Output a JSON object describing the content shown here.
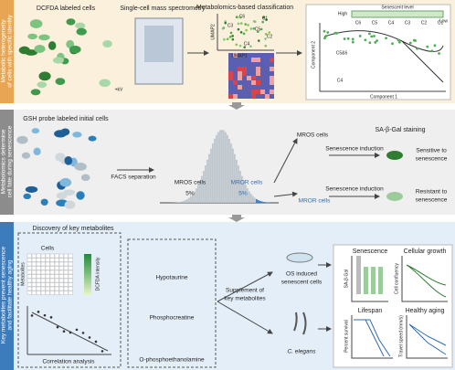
{
  "panel1": {
    "side_label": [
      "Metabolic heterogeneity",
      "of cells with specific identity"
    ],
    "dcfda": "DCFDA labeled cells",
    "kv": "+kV",
    "scms": "Single-cell mass spectrometry",
    "classification": "Metabolomics-based classification",
    "umap2": "UMAP2",
    "umap1": "UMAP1",
    "clusters": [
      "C1",
      "C2",
      "C3",
      "C4",
      "C5",
      "C6"
    ],
    "senescent_level": "Senescent level",
    "high": "High",
    "low": "Low",
    "trajectory_clusters": [
      "C6",
      "C5",
      "C4",
      "C3",
      "C2",
      "C1"
    ],
    "branch_labels": [
      "C5&6",
      "C4"
    ],
    "component2": "Component 2",
    "component1": "Component 1"
  },
  "panel2": {
    "side_label": [
      "Metabolomics determine",
      "cell fate during senescence"
    ],
    "gsh": "GSH probe labeled initial cells",
    "facs": "FACS separation",
    "mros": "MROS cells",
    "mros_pct": "5%",
    "mror": "MROR cells",
    "mror_pct": "5%",
    "mros_out": "MROS cells",
    "mror_out": "MROR cells",
    "sa_gal": "SA-β-Gal staining",
    "induction_1": "Senescence induction",
    "induction_2": "Senescence induction",
    "sensitive": [
      "Sensitive to",
      "senescence"
    ],
    "resistant": [
      "Resistant to",
      "senescence"
    ]
  },
  "panel3": {
    "side_label": [
      "Key metabolites prevent senescence",
      "and facilitate healthy aging"
    ],
    "discovery": "Discovery of key metabolites",
    "cells": "Cells",
    "metabolites": "Metabolites",
    "dcfda_intensity": "DCFDA intensity",
    "correlation": "Correlation analysis",
    "hypotaurine": "Hypotaurine",
    "phosphocreatine": "Phosphocreatine",
    "opea": "O-phosphoethanolamine",
    "supplement": [
      "Supplement of",
      "key metabolites"
    ],
    "os_cells": [
      "OS induced",
      "senescent cells"
    ],
    "elegans": "C. elegans",
    "senescence": "Senescence",
    "growth": "Cellular growth",
    "lifespan": "Lifespan",
    "healthy": "Healthy aging",
    "sa_gal_axis": "SA-β-Gal",
    "confluency": "Cell confluency",
    "survival": "Percent survival",
    "speed": "Travel speed (mm/s)"
  }
}
